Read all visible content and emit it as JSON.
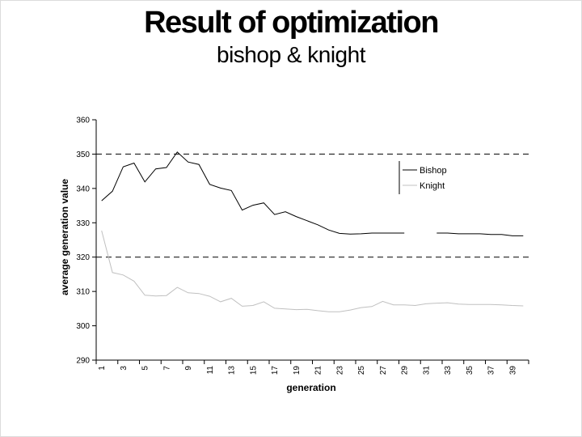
{
  "slide": {
    "title": "Result of optimization",
    "subtitle": "bishop & knight",
    "background": "#ffffff"
  },
  "colors": {
    "text": "#000000",
    "axis": "#000000",
    "reference_line": "#000000",
    "bishop_line": "#000000",
    "knight_line": "#c0c0c0"
  },
  "chart_data": {
    "type": "line",
    "title": "",
    "xlabel": "generation",
    "ylabel": "average generation value",
    "ylim": [
      290,
      360
    ],
    "y_ticks": [
      290,
      300,
      310,
      320,
      330,
      340,
      350,
      360
    ],
    "x_tick_labels": [
      "1",
      "3",
      "5",
      "7",
      "9",
      "11",
      "13",
      "15",
      "17",
      "19",
      "21",
      "23",
      "25",
      "27",
      "29",
      "31",
      "33",
      "35",
      "37",
      "39"
    ],
    "x_categories_count": 40,
    "reference_lines": [
      350,
      320
    ],
    "grid": "off",
    "legend_position": "inside-right",
    "legend": [
      "Bishop",
      "Knight"
    ],
    "series": [
      {
        "name": "Bishop",
        "color": "#000000",
        "values": [
          336.4,
          339.2,
          346.3,
          347.4,
          341.9,
          345.7,
          346.1,
          350.6,
          347.7,
          347.0,
          341.2,
          340.1,
          339.4,
          333.7,
          335.1,
          335.8,
          332.4,
          333.2,
          331.8,
          330.6,
          329.4,
          327.9,
          326.9,
          326.7,
          326.8,
          327.0,
          327.0,
          327.0,
          327.0,
          null,
          null,
          327.0,
          327.0,
          326.8,
          326.8,
          326.8,
          326.6,
          326.6,
          326.2,
          326.2
        ]
      },
      {
        "name": "Knight",
        "color": "#c0c0c0",
        "values": [
          327.7,
          315.5,
          314.8,
          313.0,
          308.9,
          308.7,
          308.8,
          311.2,
          309.6,
          309.4,
          308.6,
          307.0,
          308.0,
          305.7,
          305.9,
          307.0,
          305.1,
          304.9,
          304.7,
          304.8,
          304.4,
          304.1,
          304.1,
          304.6,
          305.3,
          305.6,
          307.1,
          306.1,
          306.1,
          305.9,
          306.4,
          306.6,
          306.7,
          306.3,
          306.2,
          306.2,
          306.2,
          306.1,
          305.9,
          305.8
        ]
      }
    ]
  }
}
